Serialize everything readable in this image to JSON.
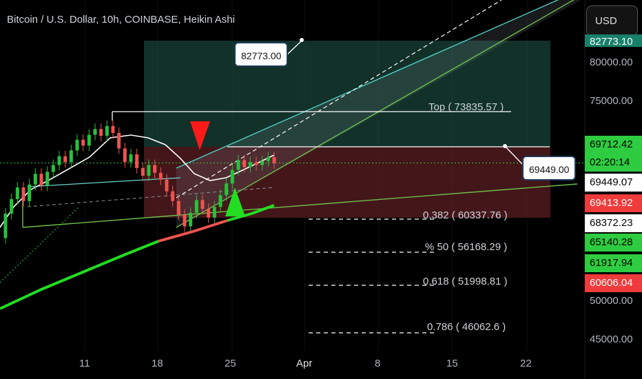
{
  "header": {
    "title": "Bitcoin / U.S. Dollar, 10h, COINBASE, Heikin Ashi",
    "currency": "USD"
  },
  "colors": {
    "background": "#000000",
    "up_candle": "#26c23d",
    "down_candle": "#ef5350",
    "profit_zone": "#1f5a4a",
    "loss_zone": "#5a1d23",
    "channel_top": "#4fd1c5",
    "channel_bottom": "#6fbf4b",
    "ma_green": "#22dd22",
    "ma_red": "#ef5350"
  },
  "chart_data": {
    "type": "candlestick",
    "title": "Bitcoin / U.S. Dollar, 10h, COINBASE, Heikin Ashi",
    "y_axis": {
      "ticks": [
        "80000.00",
        "75000.00",
        "50000.00",
        "45000.00"
      ],
      "range": [
        44000,
        84500
      ]
    },
    "x_axis": {
      "ticks": [
        "11",
        "18",
        "25",
        "Apr",
        "8",
        "15",
        "22"
      ]
    },
    "price_tags": [
      {
        "label": "82773.10",
        "value": 82773.1,
        "bg": "#18806a",
        "fg": "#ffffff"
      },
      {
        "label": "69712.42",
        "value": 69712.42,
        "bg": "#2ecc40",
        "fg": "#000000"
      },
      {
        "label": "02:20:14",
        "value": 69450,
        "bg": "#2ecc40",
        "fg": "#000000"
      },
      {
        "label": "69449.07",
        "value": 69449.07,
        "bg": "#ffffff",
        "fg": "#000000"
      },
      {
        "label": "69413.92",
        "value": 69413.92,
        "bg": "#ef3b3b",
        "fg": "#ffffff"
      },
      {
        "label": "68372.23",
        "value": 68372.23,
        "bg": "#ffffff",
        "fg": "#000000"
      },
      {
        "label": "65140.28",
        "value": 65140.28,
        "bg": "#2ecc40",
        "fg": "#000000"
      },
      {
        "label": "61917.94",
        "value": 61917.94,
        "bg": "#2ecc40",
        "fg": "#000000"
      },
      {
        "label": "60606.04",
        "value": 60606.04,
        "bg": "#ef3b3b",
        "fg": "#ffffff"
      }
    ],
    "annotations": {
      "target_label": "82773.00",
      "entry_label": "69449.00",
      "top_label": "Top ( 73835.57 )",
      "fib_levels": [
        {
          "label": "0.382 ( 60337.76 )"
        },
        {
          "label": "% 50 ( 56168.29 )"
        },
        {
          "label": "0.618 ( 51998.81 )"
        },
        {
          "label": "0.786 ( 46062.6 )"
        }
      ]
    },
    "candles": [
      {
        "o": 62000,
        "c": 64500
      },
      {
        "o": 64500,
        "c": 66000
      },
      {
        "o": 66000,
        "c": 67200
      },
      {
        "o": 67200,
        "c": 65800
      },
      {
        "o": 65800,
        "c": 67500
      },
      {
        "o": 67500,
        "c": 68600
      },
      {
        "o": 68600,
        "c": 67400
      },
      {
        "o": 67400,
        "c": 68800
      },
      {
        "o": 68800,
        "c": 69500
      },
      {
        "o": 69500,
        "c": 70400
      },
      {
        "o": 70400,
        "c": 69800
      },
      {
        "o": 69800,
        "c": 71000
      },
      {
        "o": 71000,
        "c": 72100
      },
      {
        "o": 72100,
        "c": 71500
      },
      {
        "o": 71500,
        "c": 72600
      },
      {
        "o": 72600,
        "c": 73200
      },
      {
        "o": 73200,
        "c": 72500
      },
      {
        "o": 72500,
        "c": 73500
      },
      {
        "o": 73500,
        "c": 72800
      },
      {
        "o": 72800,
        "c": 71200
      },
      {
        "o": 71200,
        "c": 69800
      },
      {
        "o": 69800,
        "c": 70600
      },
      {
        "o": 70600,
        "c": 69200
      },
      {
        "o": 69200,
        "c": 68400
      },
      {
        "o": 68400,
        "c": 69500
      },
      {
        "o": 69500,
        "c": 68700
      },
      {
        "o": 68700,
        "c": 68000
      },
      {
        "o": 68000,
        "c": 66800
      },
      {
        "o": 66800,
        "c": 65800
      },
      {
        "o": 65800,
        "c": 64400
      },
      {
        "o": 64400,
        "c": 63200
      },
      {
        "o": 63200,
        "c": 64600
      },
      {
        "o": 64600,
        "c": 65900
      },
      {
        "o": 65900,
        "c": 65000
      },
      {
        "o": 65000,
        "c": 64100
      },
      {
        "o": 64100,
        "c": 65200
      },
      {
        "o": 65200,
        "c": 66400
      },
      {
        "o": 66400,
        "c": 67600
      },
      {
        "o": 67600,
        "c": 69000
      },
      {
        "o": 69000,
        "c": 70000
      },
      {
        "o": 70000,
        "c": 69300
      },
      {
        "o": 69300,
        "c": 69800
      },
      {
        "o": 69800,
        "c": 69500
      },
      {
        "o": 69500,
        "c": 69900
      },
      {
        "o": 69900,
        "c": 70300
      },
      {
        "o": 70300,
        "c": 69700
      }
    ]
  }
}
